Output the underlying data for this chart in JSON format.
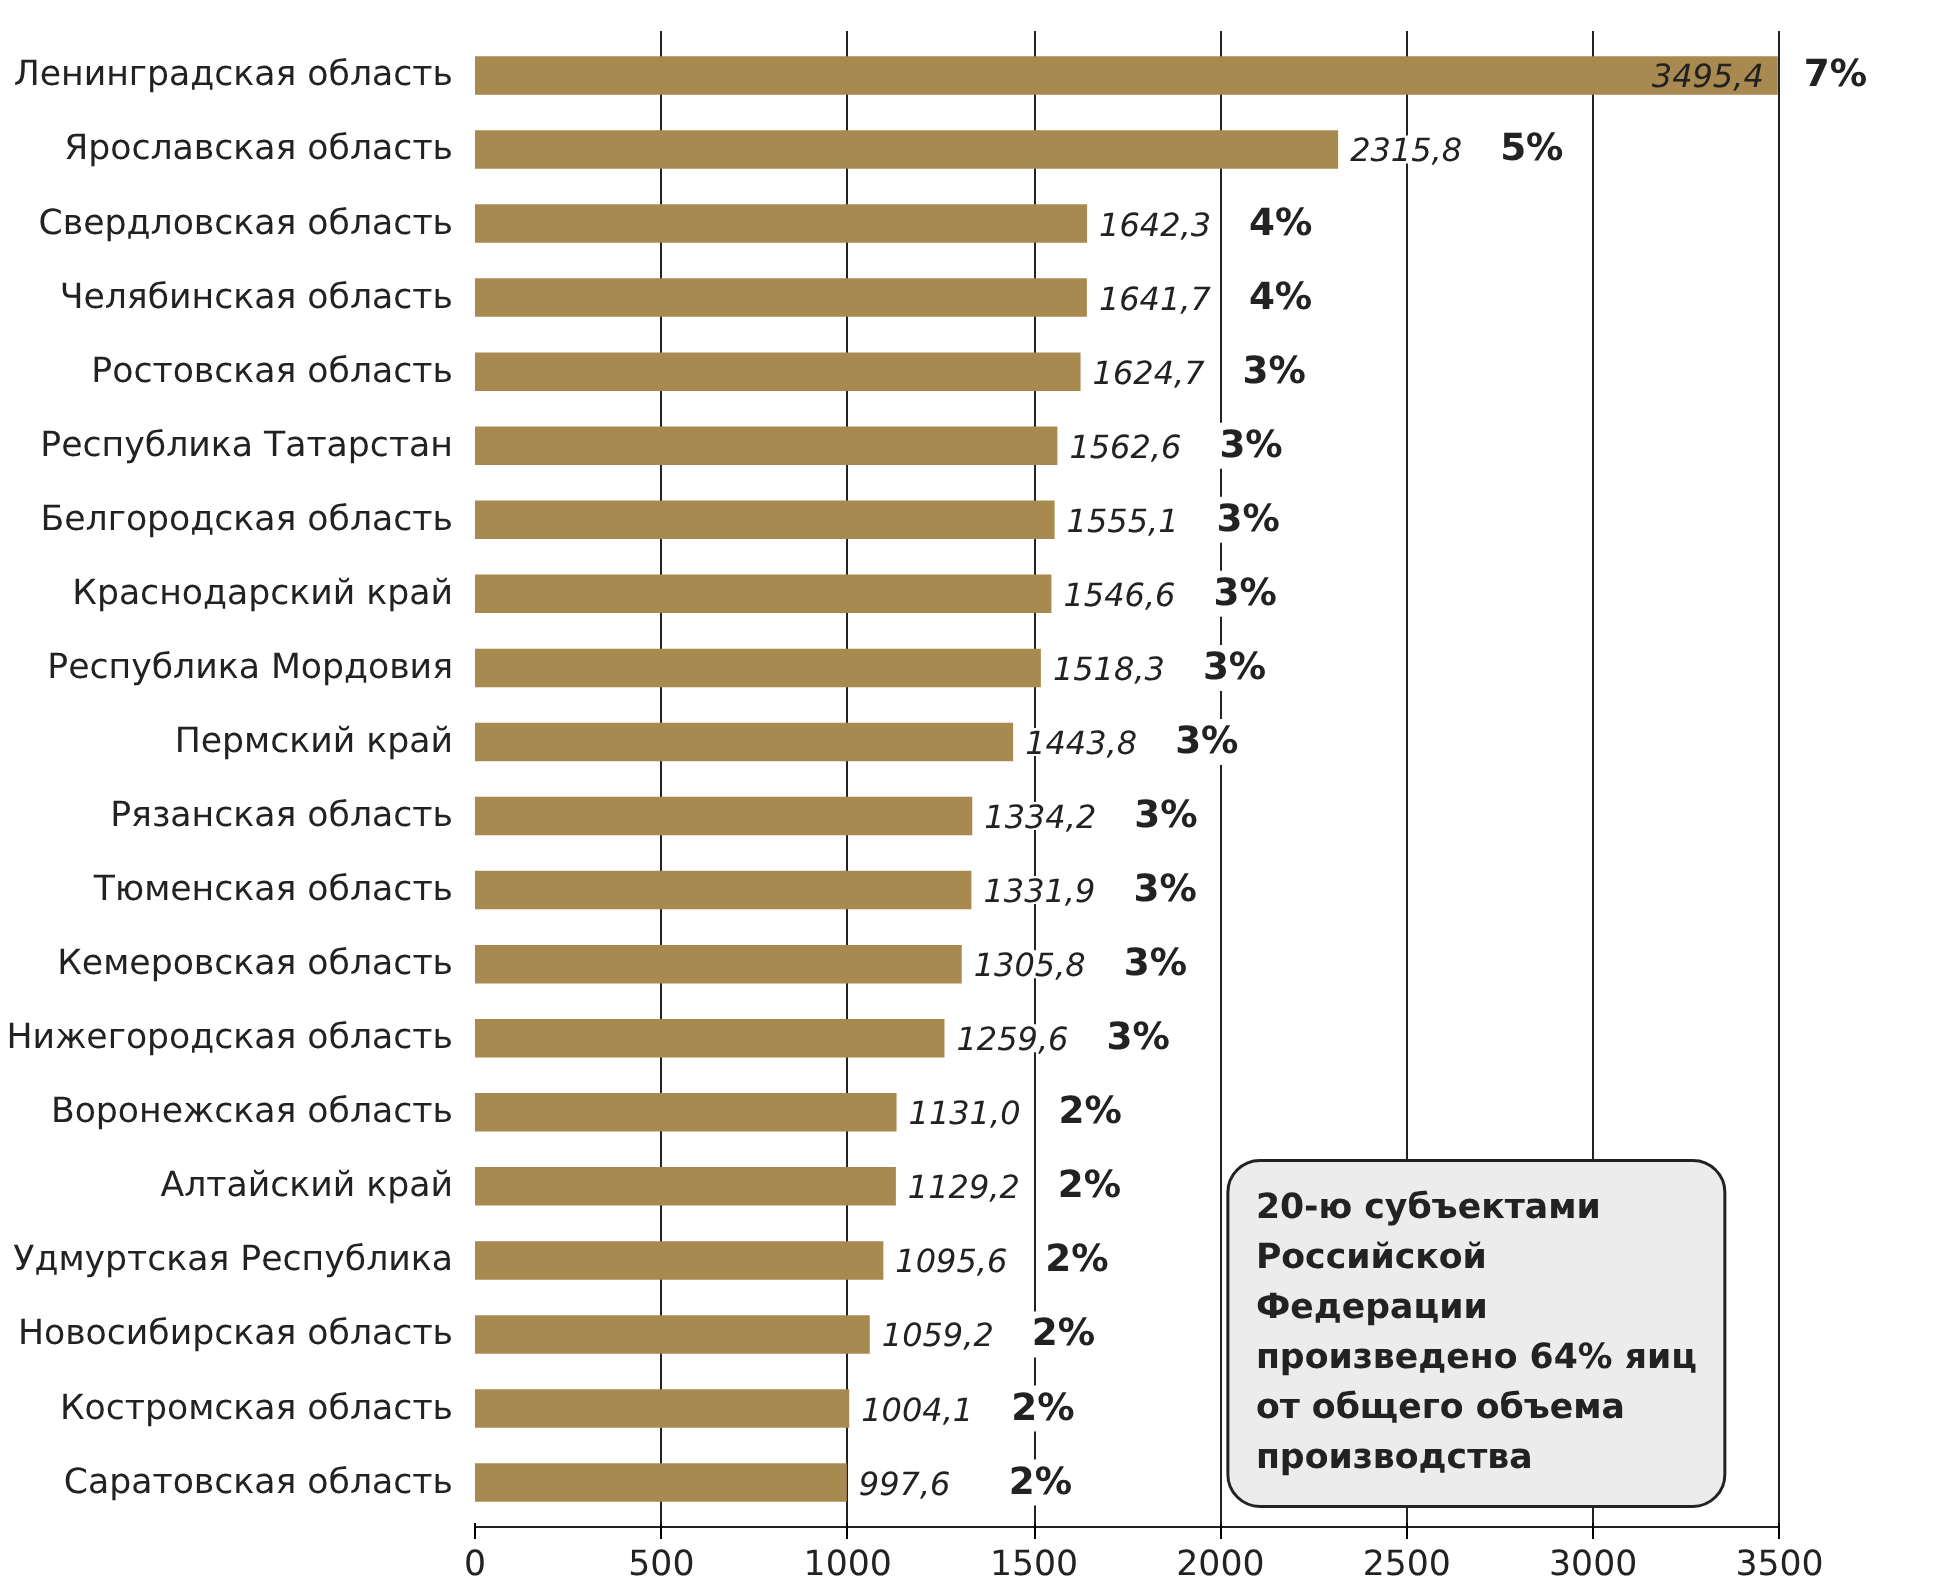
{
  "chart_data": {
    "type": "bar",
    "orientation": "horizontal",
    "categories": [
      "Ленинградская область",
      "Ярославская область",
      "Свердловская область",
      "Челябинская область",
      "Ростовская область",
      "Республика Татарстан",
      "Белгородская область",
      "Краснодарский край",
      "Республика Мордовия",
      "Пермский край",
      "Рязанская область",
      "Тюменская область",
      "Кемеровская область",
      "Нижегородская область",
      "Воронежская область",
      "Алтайский край",
      "Удмуртская Республика",
      "Новосибирская область",
      "Костромская область",
      "Саратовская область"
    ],
    "values": [
      3495.4,
      2315.8,
      1642.3,
      1641.7,
      1624.7,
      1562.6,
      1555.1,
      1546.6,
      1518.3,
      1443.8,
      1334.2,
      1331.9,
      1305.8,
      1259.6,
      1131.0,
      1129.2,
      1095.6,
      1059.2,
      1004.1,
      997.6
    ],
    "value_labels": [
      "3495,4",
      "2315,8",
      "1642,3",
      "1641,7",
      "1624,7",
      "1562,6",
      "1555,1",
      "1546,6",
      "1518,3",
      "1443,8",
      "1334,2",
      "1331,9",
      "1305,8",
      "1259,6",
      "1131,0",
      "1129,2",
      "1095,6",
      "1059,2",
      "1004,1",
      "997,6"
    ],
    "color": "#a8894f",
    "xlim": [
      0,
      3500
    ],
    "xticks": [
      0,
      500,
      1000,
      1500,
      2000,
      2500,
      3000,
      3500
    ],
    "grid": "x",
    "annotations": [
      "7%",
      "5%",
      "4%",
      "4%",
      "3%",
      "3%",
      "3%",
      "3%",
      "3%",
      "3%",
      "3%",
      "3%",
      "3%",
      "3%",
      "2%",
      "2%",
      "2%",
      "2%",
      "2%",
      "2%",
      "20-ю субъектами Российской Федерации произведено 64% яиц от общего объема производства"
    ]
  }
}
